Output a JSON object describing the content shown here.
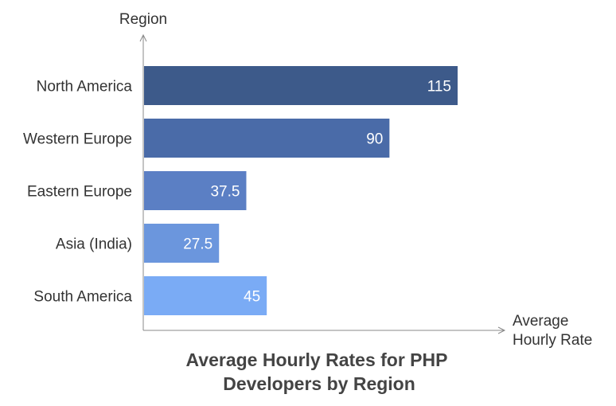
{
  "chart_data": {
    "type": "bar",
    "orientation": "horizontal",
    "title_lines": [
      "Average Hourly Rates for PHP",
      "Developers by Region"
    ],
    "ylabel": "Region",
    "xlabel_lines": [
      "Average",
      "Hourly Rate"
    ],
    "categories": [
      "North America",
      "Western Europe",
      "Eastern Europe",
      "Asia (India)",
      "South America"
    ],
    "values": [
      115,
      90,
      37.5,
      27.5,
      45
    ],
    "value_labels": [
      "115",
      "90",
      "37.5",
      "27.5",
      "45"
    ],
    "colors": [
      "#3d5a8a",
      "#4a6ba8",
      "#5b7fc4",
      "#6b96dd",
      "#7aabf5"
    ],
    "xlim": [
      0,
      115
    ],
    "grid": false,
    "legend": "none"
  }
}
